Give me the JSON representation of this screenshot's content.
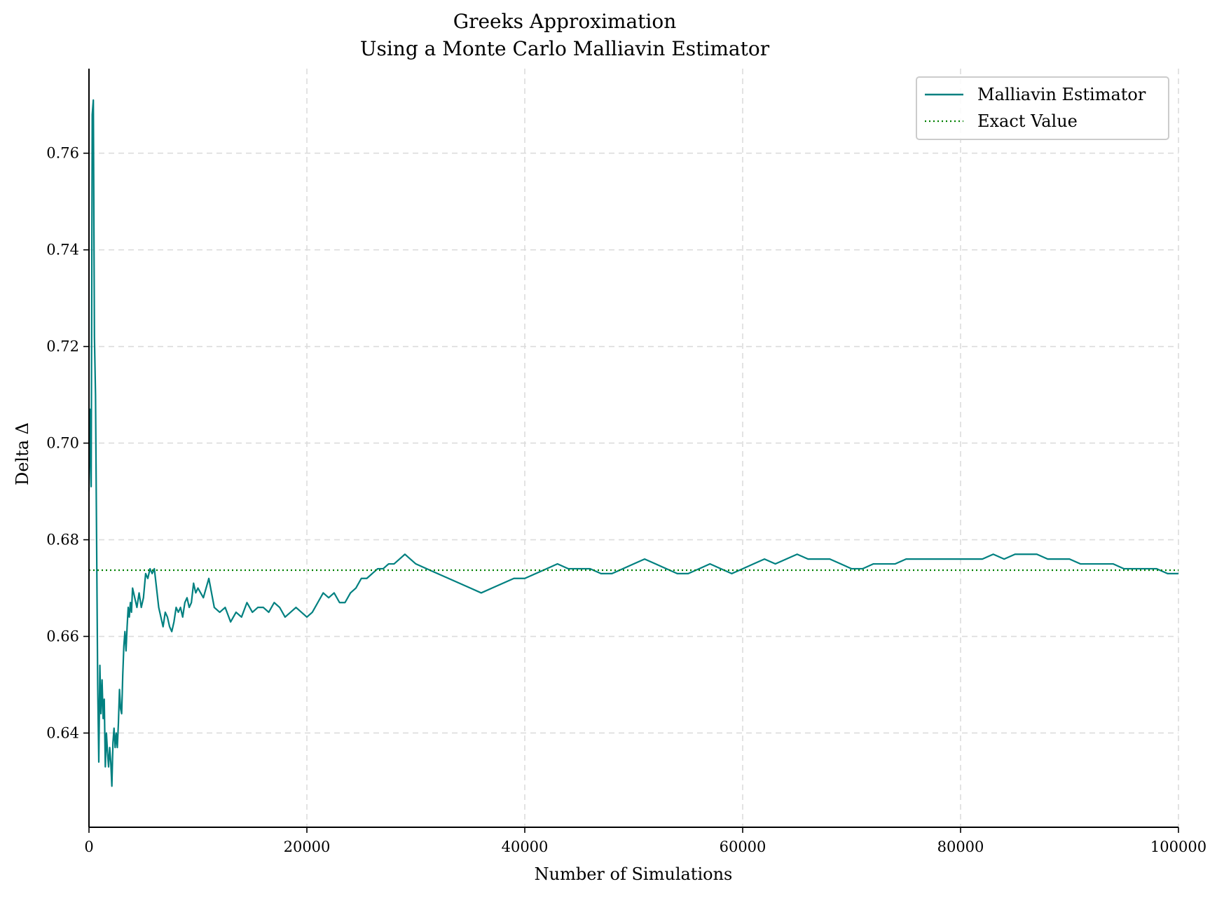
{
  "chart_data": {
    "type": "line",
    "title": "Greeks Approximation",
    "subtitle": "Using a Monte Carlo Malliavin Estimator",
    "xlabel": "Number of Simulations",
    "ylabel": "Delta Δ",
    "xlim": [
      0,
      100000
    ],
    "ylim": [
      0.6205,
      0.7775
    ],
    "xticks": [
      0,
      20000,
      40000,
      60000,
      80000,
      100000
    ],
    "xtick_labels": [
      "0",
      "20000",
      "40000",
      "60000",
      "80000",
      "100000"
    ],
    "yticks": [
      0.64,
      0.66,
      0.68,
      0.7,
      0.72,
      0.74,
      0.76
    ],
    "ytick_labels": [
      "0.64",
      "0.66",
      "0.68",
      "0.70",
      "0.72",
      "0.74",
      "0.76"
    ],
    "grid": true,
    "legend_position": "top-right",
    "series": [
      {
        "name": "Malliavin Estimator",
        "style": "solid",
        "color": "#008080",
        "x": [
          0,
          100,
          200,
          300,
          400,
          500,
          600,
          700,
          800,
          900,
          1000,
          1100,
          1200,
          1300,
          1400,
          1500,
          1600,
          1700,
          1800,
          1900,
          2000,
          2100,
          2200,
          2300,
          2400,
          2500,
          2600,
          2700,
          2800,
          2900,
          3000,
          3100,
          3200,
          3300,
          3400,
          3500,
          3600,
          3700,
          3800,
          3900,
          4000,
          4200,
          4400,
          4600,
          4800,
          5000,
          5200,
          5400,
          5600,
          5800,
          6000,
          6200,
          6400,
          6600,
          6800,
          7000,
          7200,
          7400,
          7600,
          7800,
          8000,
          8200,
          8400,
          8600,
          8800,
          9000,
          9200,
          9400,
          9600,
          9800,
          10000,
          10500,
          11000,
          11500,
          12000,
          12500,
          13000,
          13500,
          14000,
          14500,
          15000,
          15500,
          16000,
          16500,
          17000,
          17500,
          18000,
          18500,
          19000,
          19500,
          20000,
          20500,
          21000,
          21500,
          22000,
          22500,
          23000,
          23500,
          24000,
          24500,
          25000,
          25500,
          26000,
          26500,
          27000,
          27500,
          28000,
          28500,
          29000,
          29500,
          30000,
          31000,
          32000,
          33000,
          34000,
          35000,
          36000,
          37000,
          38000,
          39000,
          40000,
          41000,
          42000,
          43000,
          44000,
          45000,
          46000,
          47000,
          48000,
          49000,
          50000,
          51000,
          52000,
          53000,
          54000,
          55000,
          56000,
          57000,
          58000,
          59000,
          60000,
          61000,
          62000,
          63000,
          64000,
          65000,
          66000,
          67000,
          68000,
          69000,
          70000,
          71000,
          72000,
          73000,
          74000,
          75000,
          76000,
          77000,
          78000,
          79000,
          80000,
          81000,
          82000,
          83000,
          84000,
          85000,
          86000,
          87000,
          88000,
          89000,
          90000,
          91000,
          92000,
          93000,
          94000,
          95000,
          96000,
          97000,
          98000,
          99000,
          100000
        ],
        "y": [
          0.69,
          0.707,
          0.691,
          0.768,
          0.771,
          0.722,
          0.71,
          0.68,
          0.65,
          0.634,
          0.654,
          0.644,
          0.651,
          0.643,
          0.647,
          0.633,
          0.64,
          0.636,
          0.633,
          0.637,
          0.634,
          0.629,
          0.638,
          0.641,
          0.637,
          0.64,
          0.637,
          0.642,
          0.649,
          0.645,
          0.644,
          0.652,
          0.658,
          0.661,
          0.657,
          0.662,
          0.666,
          0.664,
          0.667,
          0.665,
          0.67,
          0.668,
          0.666,
          0.669,
          0.666,
          0.668,
          0.673,
          0.672,
          0.674,
          0.673,
          0.674,
          0.67,
          0.666,
          0.664,
          0.662,
          0.665,
          0.664,
          0.662,
          0.661,
          0.663,
          0.666,
          0.665,
          0.666,
          0.664,
          0.667,
          0.668,
          0.666,
          0.667,
          0.671,
          0.669,
          0.67,
          0.668,
          0.672,
          0.666,
          0.665,
          0.666,
          0.663,
          0.665,
          0.664,
          0.667,
          0.665,
          0.666,
          0.666,
          0.665,
          0.667,
          0.666,
          0.664,
          0.665,
          0.666,
          0.665,
          0.664,
          0.665,
          0.667,
          0.669,
          0.668,
          0.669,
          0.667,
          0.667,
          0.669,
          0.67,
          0.672,
          0.672,
          0.673,
          0.674,
          0.674,
          0.675,
          0.675,
          0.676,
          0.677,
          0.676,
          0.675,
          0.674,
          0.673,
          0.672,
          0.671,
          0.67,
          0.669,
          0.67,
          0.671,
          0.672,
          0.672,
          0.673,
          0.674,
          0.675,
          0.674,
          0.674,
          0.674,
          0.673,
          0.673,
          0.674,
          0.675,
          0.676,
          0.675,
          0.674,
          0.673,
          0.673,
          0.674,
          0.675,
          0.674,
          0.673,
          0.674,
          0.675,
          0.676,
          0.675,
          0.676,
          0.677,
          0.676,
          0.676,
          0.676,
          0.675,
          0.674,
          0.674,
          0.675,
          0.675,
          0.675,
          0.676,
          0.676,
          0.676,
          0.676,
          0.676,
          0.676,
          0.676,
          0.676,
          0.677,
          0.676,
          0.677,
          0.677,
          0.677,
          0.676,
          0.676,
          0.676,
          0.675,
          0.675,
          0.675,
          0.675,
          0.674,
          0.674,
          0.674,
          0.674,
          0.673,
          0.673
        ]
      },
      {
        "name": "Exact Value",
        "style": "dotted",
        "color": "#008000",
        "x": [
          0,
          100000
        ],
        "y": [
          0.6737,
          0.6737
        ]
      }
    ]
  }
}
